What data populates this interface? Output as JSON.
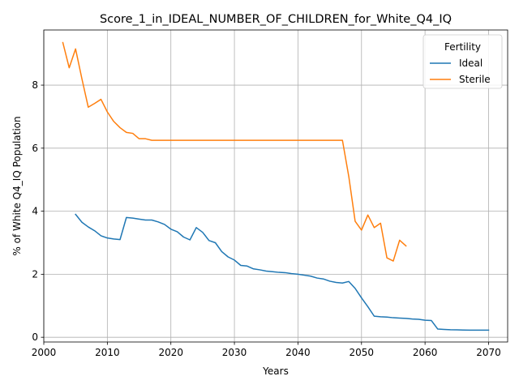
{
  "chart_data": {
    "type": "line",
    "title": "Score_1_in_IDEAL_NUMBER_OF_CHILDREN_for_White_Q4_IQ",
    "xlabel": "Years",
    "ylabel": "% of White Q4_IQ Population",
    "xlim": [
      2000,
      2073
    ],
    "ylim": [
      -0.15,
      9.75
    ],
    "xticks": [
      2000,
      2010,
      2020,
      2030,
      2040,
      2050,
      2060,
      2070
    ],
    "yticks": [
      0,
      2,
      4,
      6,
      8
    ],
    "grid": true,
    "legend": {
      "title": "Fertility",
      "placement": "top-right"
    },
    "series": [
      {
        "name": "Ideal",
        "color": "#1f77b4",
        "x": [
          2005,
          2006,
          2007,
          2008,
          2009,
          2010,
          2011,
          2012,
          2013,
          2014,
          2015,
          2016,
          2017,
          2018,
          2019,
          2020,
          2021,
          2022,
          2023,
          2024,
          2025,
          2026,
          2027,
          2028,
          2029,
          2030,
          2031,
          2032,
          2033,
          2034,
          2035,
          2036,
          2037,
          2038,
          2039,
          2040,
          2041,
          2042,
          2043,
          2044,
          2045,
          2046,
          2047,
          2048,
          2049,
          2050,
          2051,
          2052,
          2053,
          2054,
          2055,
          2056,
          2057,
          2058,
          2059,
          2060,
          2061,
          2062,
          2063,
          2064,
          2065,
          2066,
          2067,
          2068,
          2069,
          2070
        ],
        "y": [
          3.9,
          3.65,
          3.5,
          3.38,
          3.22,
          3.15,
          3.12,
          3.1,
          3.8,
          3.78,
          3.75,
          3.72,
          3.72,
          3.66,
          3.58,
          3.43,
          3.35,
          3.18,
          3.09,
          3.48,
          3.33,
          3.07,
          3.0,
          2.72,
          2.55,
          2.45,
          2.28,
          2.26,
          2.17,
          2.14,
          2.1,
          2.08,
          2.06,
          2.05,
          2.02,
          2.0,
          1.97,
          1.94,
          1.88,
          1.85,
          1.78,
          1.74,
          1.72,
          1.77,
          1.55,
          1.25,
          0.97,
          0.67,
          0.65,
          0.64,
          0.62,
          0.61,
          0.6,
          0.58,
          0.57,
          0.54,
          0.53,
          0.26,
          0.25,
          0.24,
          0.235,
          0.23,
          0.225,
          0.225,
          0.225,
          0.225
        ]
      },
      {
        "name": "Sterile",
        "color": "#ff7f0e",
        "x": [
          2003,
          2004,
          2005,
          2006,
          2007,
          2008,
          2009,
          2010,
          2011,
          2012,
          2013,
          2014,
          2015,
          2016,
          2017,
          2018,
          2019,
          2020,
          2021,
          2022,
          2023,
          2024,
          2025,
          2026,
          2027,
          2028,
          2029,
          2030,
          2031,
          2032,
          2033,
          2034,
          2035,
          2036,
          2037,
          2038,
          2039,
          2040,
          2041,
          2042,
          2043,
          2044,
          2045,
          2046,
          2047,
          2048,
          2049,
          2050,
          2051,
          2052,
          2053,
          2054,
          2055,
          2056,
          2057
        ],
        "y": [
          9.35,
          8.55,
          9.15,
          8.2,
          7.3,
          7.42,
          7.55,
          7.15,
          6.85,
          6.65,
          6.5,
          6.47,
          6.3,
          6.3,
          6.25,
          6.25,
          6.25,
          6.25,
          6.25,
          6.25,
          6.25,
          6.25,
          6.25,
          6.25,
          6.25,
          6.25,
          6.25,
          6.25,
          6.25,
          6.25,
          6.25,
          6.25,
          6.25,
          6.25,
          6.25,
          6.25,
          6.25,
          6.25,
          6.25,
          6.25,
          6.25,
          6.25,
          6.25,
          6.25,
          6.25,
          5.1,
          3.68,
          3.4,
          3.88,
          3.48,
          3.62,
          2.52,
          2.42,
          3.08,
          2.9
        ]
      }
    ]
  }
}
